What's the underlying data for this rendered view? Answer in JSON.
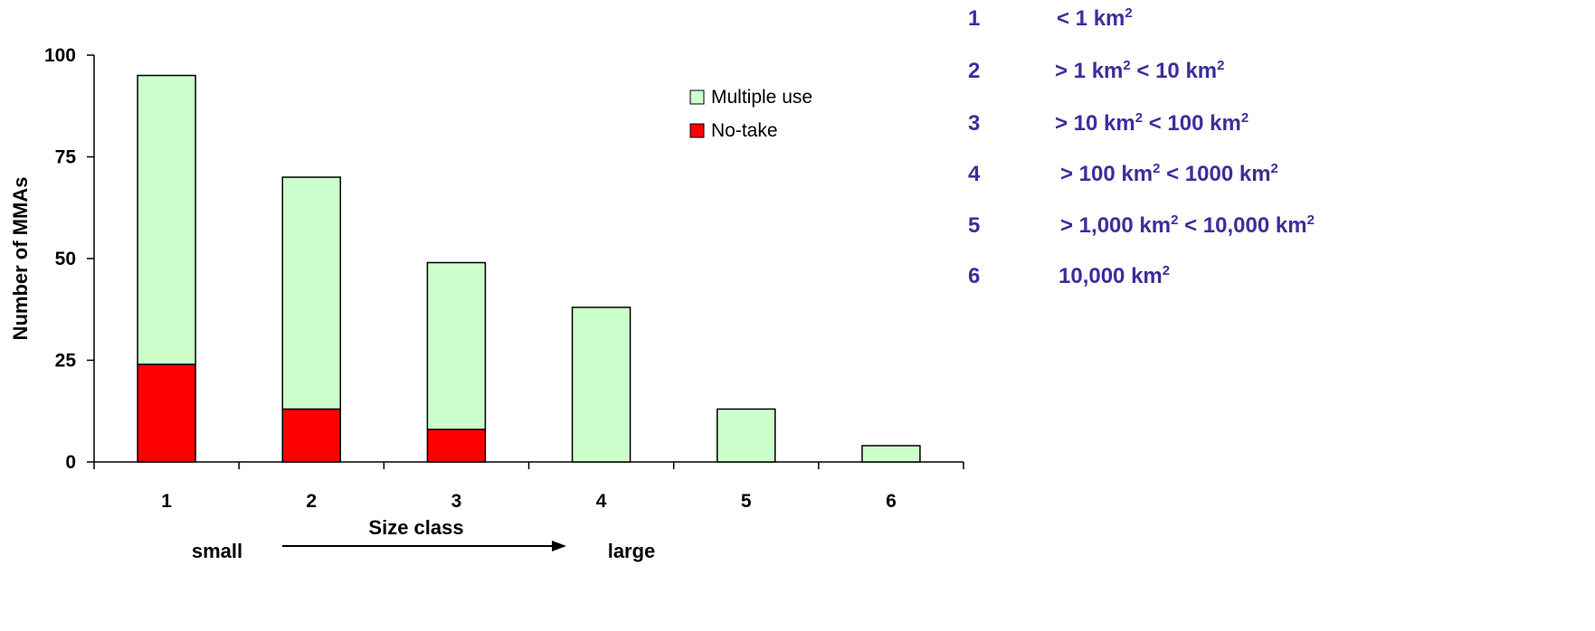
{
  "chart_data": {
    "type": "bar",
    "stacked": true,
    "categories": [
      "1",
      "2",
      "3",
      "4",
      "5",
      "6"
    ],
    "series": [
      {
        "name": "No-take",
        "values": [
          24,
          13,
          8,
          0,
          0,
          0
        ],
        "color": "#ff0000"
      },
      {
        "name": "Multiple use",
        "values": [
          71,
          57,
          41,
          38,
          13,
          4
        ],
        "color": "#ccffcc"
      }
    ],
    "xlabel": "Size class",
    "ylabel": "Number of MMAs",
    "ylim": [
      0,
      100
    ],
    "yticks": [
      "0",
      "25",
      "50",
      "75",
      "100"
    ],
    "grid": false,
    "legend": {
      "position": "top-right",
      "entries": [
        "Multiple use",
        "No-take"
      ]
    },
    "annotations": {
      "small": "small",
      "large": "large"
    }
  },
  "size_classes": [
    {
      "num": "1",
      "text": "< 1 km",
      "sup": "2",
      "text2": "",
      "sup2": ""
    },
    {
      "num": "2",
      "text": "> 1 km",
      "sup": "2",
      "text2": " < 10 km",
      "sup2": "2"
    },
    {
      "num": "3",
      "text": "> 10 km",
      "sup": "2",
      "text2": " < 100 km",
      "sup2": "2"
    },
    {
      "num": "4",
      "text": " > 100 km",
      "sup": "2",
      "text2": " < 1000 km",
      "sup2": "2"
    },
    {
      "num": "5",
      "text": " > 1,000 km",
      "sup": "2",
      "text2": " < 10,000 km",
      "sup2": "2"
    },
    {
      "num": "6",
      "text": " 10,000 km",
      "sup": "2",
      "text2": "",
      "sup2": ""
    }
  ]
}
